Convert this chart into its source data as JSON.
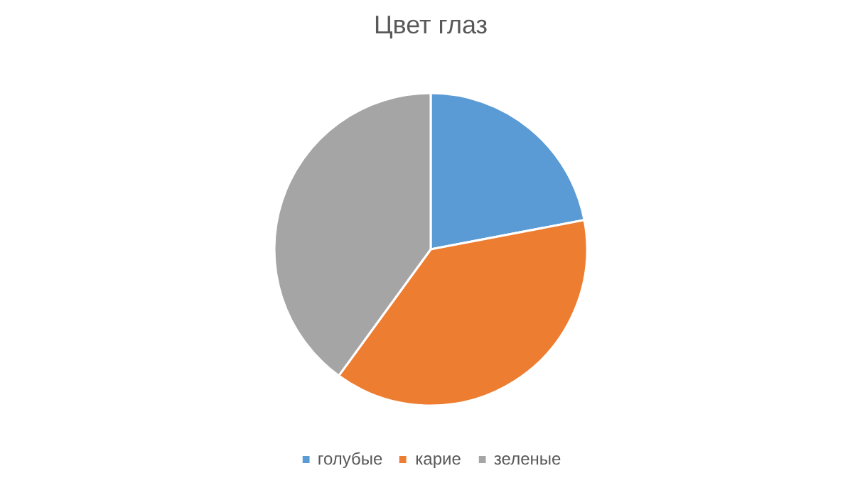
{
  "chart_data": {
    "type": "pie",
    "title": "Цвет глаз",
    "categories": [
      "голубые",
      "карие",
      "зеленые"
    ],
    "values": [
      22,
      38,
      40
    ],
    "colors": [
      "#5b9bd5",
      "#ed7d31",
      "#a5a5a5"
    ],
    "legend": "bottom"
  }
}
